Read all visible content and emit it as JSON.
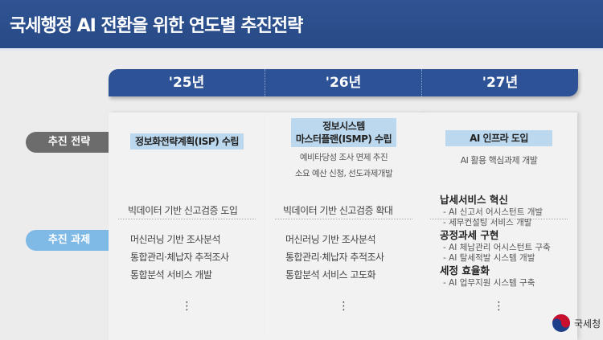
{
  "title": "국세행정 AI 전환을 위한 연도별 추진전략",
  "years": [
    "'25년",
    "'26년",
    "'27년"
  ],
  "row_labels": {
    "strategy": "추진 전략",
    "tasks": "추진 과제"
  },
  "columns": [
    {
      "strategy": "정보화전략계획(ISP) 수립",
      "strategy_notes": [],
      "tasks": [
        "빅데이터 기반 신고검증 도입",
        "머신러닝 기반 조사분석",
        "통합관리·체납자 추적조사",
        "통합분석 서비스 개발"
      ]
    },
    {
      "strategy_line1": "정보시스템",
      "strategy_line2": "마스터플랜(ISMP) 수립",
      "strategy_notes": [
        "예비타당성 조사 면제 추진",
        "소요 예산 신청, 선도과제개발"
      ],
      "tasks": [
        "빅데이터 기반 신고검증 확대",
        "머신러닝 기반 조사분석",
        "통합관리·체납자 추적조사",
        "통합분석 서비스 고도화"
      ]
    },
    {
      "strategy": "AI 인프라 도입",
      "strategy_notes": [
        "AI 활용 핵심과제 개발"
      ],
      "groups": [
        {
          "title": "납세서비스 혁신",
          "items": [
            "- AI 신고서 어시스턴트 개발",
            "- 세무컨설팅 서비스 개발"
          ]
        },
        {
          "title": "공정과세 구현",
          "items": [
            "- AI 체납관리 어시스턴트 구축",
            "- AI 탈세적발 시스템 개발"
          ]
        },
        {
          "title": "세정 효율화",
          "items": [
            "- AI 업무지원 시스템 구축"
          ]
        }
      ]
    }
  ],
  "more": "⋮",
  "logo_text": "국세청",
  "colors": {
    "header": "#2c4f8f",
    "year_bar": "#2d5296",
    "highlight": "#bcd8ee",
    "strategy_pill": "#6c6c6c",
    "tasks_pill": "#7fb9e6"
  }
}
